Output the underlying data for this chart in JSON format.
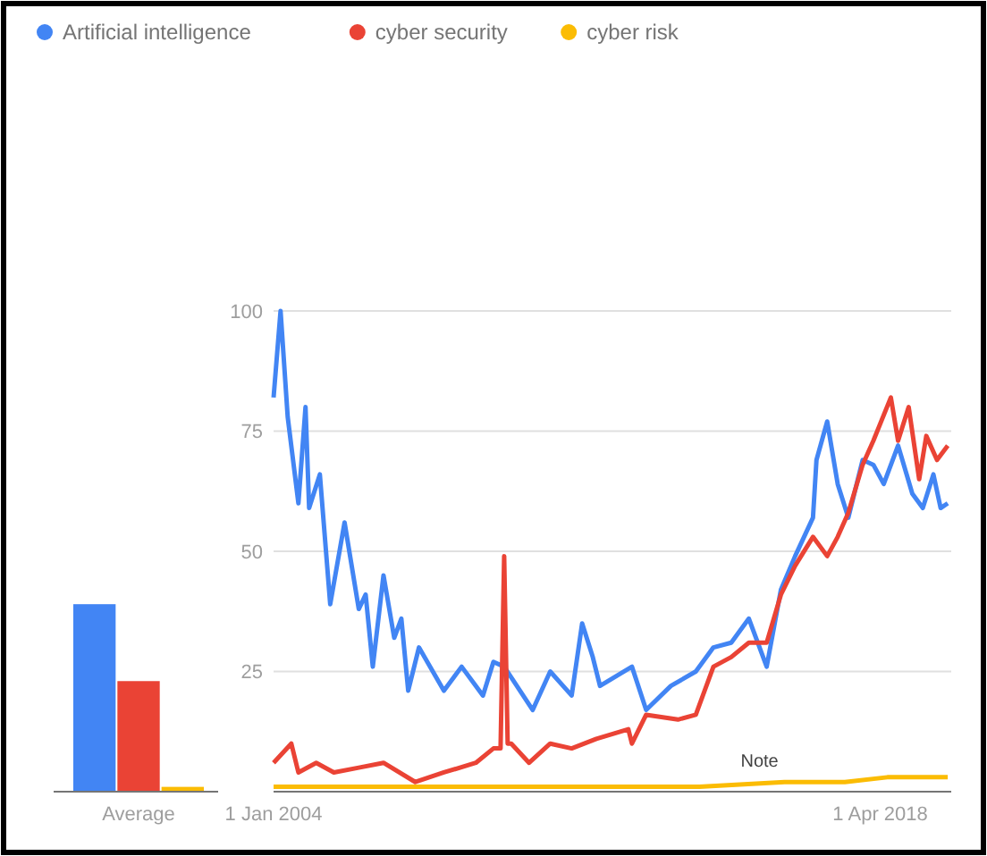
{
  "chart_data": [
    {
      "type": "bar",
      "categories": [
        "Average"
      ],
      "ylim": [
        0,
        100
      ],
      "tick_labels": "x",
      "series": [
        {
          "color": "#4285f4",
          "values": [
            39
          ]
        },
        {
          "color": "#ea4335",
          "values": [
            23
          ]
        },
        {
          "color": "#fbbc04",
          "values": [
            1
          ]
        }
      ]
    },
    {
      "type": "line",
      "xlim": [
        "2004-01",
        "2019-12"
      ],
      "ylim": [
        0,
        100
      ],
      "yticks": [
        25,
        50,
        75,
        100
      ],
      "xticks": [
        {
          "value": "2004-01-01",
          "label": "1 Jan 2004"
        },
        {
          "value": "2018-04-01",
          "label": "1 Apr 2018"
        }
      ],
      "grid": "y",
      "legend": "top left",
      "marker": "none",
      "line_style": "solid",
      "annotations": [
        {
          "text": "Note",
          "x": "2015-06",
          "y": 3
        }
      ],
      "series": [
        {
          "name": "Artificial intelligence",
          "color": "#4285f4",
          "x": [
            "2004-01",
            "2004-03",
            "2004-05",
            "2004-08",
            "2004-10",
            "2004-11",
            "2005-02",
            "2005-05",
            "2005-09",
            "2006-01",
            "2006-03",
            "2006-05",
            "2006-08",
            "2006-11",
            "2007-01",
            "2007-03",
            "2007-06",
            "2008-01",
            "2008-06",
            "2008-12",
            "2009-03",
            "2009-06",
            "2010-02",
            "2010-07",
            "2011-01",
            "2011-04",
            "2011-07",
            "2011-09",
            "2012-06",
            "2012-10",
            "2013-05",
            "2013-12",
            "2014-05",
            "2014-10",
            "2015-03",
            "2015-08",
            "2015-12",
            "2016-04",
            "2016-09",
            "2016-10",
            "2017-01",
            "2017-04",
            "2017-07",
            "2017-11",
            "2018-02",
            "2018-05",
            "2018-09",
            "2019-01",
            "2019-04",
            "2019-07",
            "2019-09",
            "2019-11"
          ],
          "values": [
            82,
            100,
            78,
            60,
            80,
            59,
            66,
            39,
            56,
            38,
            41,
            26,
            45,
            32,
            36,
            21,
            30,
            21,
            26,
            20,
            27,
            26,
            17,
            25,
            20,
            35,
            28,
            22,
            26,
            17,
            22,
            25,
            30,
            31,
            36,
            26,
            42,
            49,
            57,
            69,
            77,
            64,
            57,
            69,
            68,
            64,
            72,
            62,
            59,
            66,
            59,
            60
          ]
        },
        {
          "name": "cyber security",
          "color": "#ea4335",
          "x": [
            "2004-01",
            "2004-06",
            "2004-08",
            "2005-01",
            "2005-06",
            "2006-01",
            "2006-08",
            "2007-05",
            "2008-01",
            "2008-10",
            "2009-03",
            "2009-05",
            "2009-06",
            "2009-07",
            "2009-08",
            "2010-01",
            "2010-07",
            "2011-01",
            "2011-08",
            "2012-05",
            "2012-06",
            "2012-10",
            "2013-07",
            "2013-12",
            "2014-05",
            "2014-10",
            "2015-03",
            "2015-08",
            "2015-12",
            "2016-04",
            "2016-09",
            "2017-01",
            "2017-04",
            "2017-07",
            "2017-11",
            "2018-02",
            "2018-07",
            "2018-09",
            "2018-12",
            "2019-03",
            "2019-05",
            "2019-08",
            "2019-11"
          ],
          "values": [
            6,
            10,
            4,
            6,
            4,
            5,
            6,
            2,
            4,
            6,
            9,
            9,
            49,
            10,
            10,
            6,
            10,
            9,
            11,
            13,
            10,
            16,
            15,
            16,
            26,
            28,
            31,
            31,
            41,
            47,
            53,
            49,
            53,
            58,
            68,
            73,
            82,
            73,
            80,
            65,
            74,
            69,
            72
          ]
        },
        {
          "name": "cyber risk",
          "color": "#fbbc04",
          "x": [
            "2004-01",
            "2008-01",
            "2012-01",
            "2014-01",
            "2016-01",
            "2017-06",
            "2018-06",
            "2019-06",
            "2019-11"
          ],
          "values": [
            1,
            1,
            1,
            1,
            2,
            2,
            3,
            3,
            3
          ]
        }
      ]
    }
  ]
}
